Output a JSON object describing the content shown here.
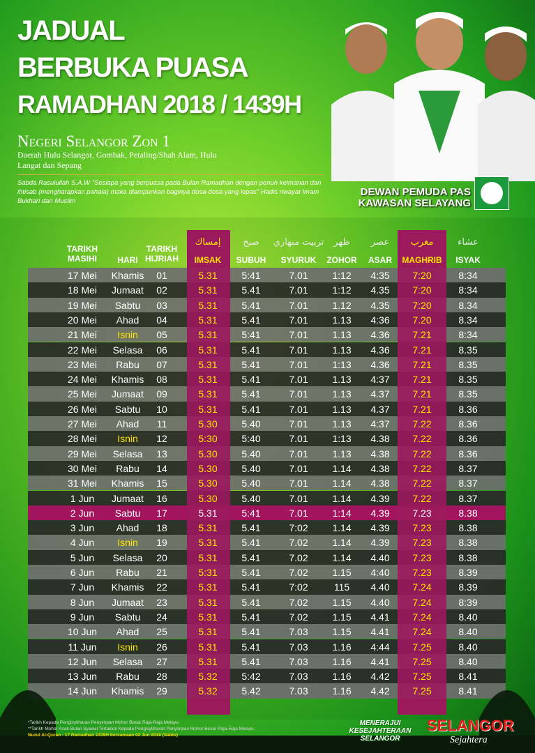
{
  "header": {
    "title_lines": [
      "JADUAL",
      "BERBUKA PUASA",
      "RAMADHAN 2018 / 1439H"
    ],
    "zone": "Negeri Selangor Zon 1",
    "districts": "Daerah Hulu Selangor, Gombak, Petaling/Shah Alam, Hulu Langat dan Sepang",
    "hadith": "Sabda Rasulullah S.A.W \"Sesiapa yang berpuasa pada Bulan Ramadhan dengan penuh keimanan dan ihtisab (mengharapkan pahala) maka diampunkan baginya dosa-dosa yang lepas\" Hadis riwayat Imam Bukhari dan Muslim",
    "organiser": [
      "DEWAN PEMUDA PAS",
      "KAWASAN SELAYANG"
    ]
  },
  "table": {
    "arabic": [
      "",
      "",
      "",
      "إمساك",
      "صبح",
      "تربيت منهاري",
      "ظهر",
      "عصر",
      "مغرب",
      "عشاء"
    ],
    "columns": [
      "TARIKH MASIHI",
      "HARI",
      "TARIKH HIJRIAH",
      "IMSAK",
      "SUBUH",
      "SYURUK",
      "ZOHOR",
      "ASAR",
      "MAGHRIB",
      "ISYAK"
    ],
    "rows": [
      [
        "17 Mei",
        "Khamis",
        "01",
        "5.31",
        "5:41",
        "7.01",
        "1:12",
        "4:35",
        "7:20",
        "8:34"
      ],
      [
        "18 Mei",
        "Jumaat",
        "02",
        "5.31",
        "5.41",
        "7.01",
        "1:12",
        "4.35",
        "7:20",
        "8:34"
      ],
      [
        "19 Mei",
        "Sabtu",
        "03",
        "5.31",
        "5.41",
        "7.01",
        "1.12",
        "4.35",
        "7:20",
        "8.34"
      ],
      [
        "20 Mei",
        "Ahad",
        "04",
        "5.31",
        "5.41",
        "7.01",
        "1.13",
        "4:36",
        "7.20",
        "8.34"
      ],
      [
        "21 Mei",
        "Isnin",
        "05",
        "5.31",
        "5:41",
        "7.01",
        "1.13",
        "4.36",
        "7.21",
        "8:34"
      ],
      [
        "22 Mei",
        "Selasa",
        "06",
        "5.31",
        "5.41",
        "7.01",
        "1.13",
        "4.36",
        "7.21",
        "8.35"
      ],
      [
        "23 Mei",
        "Rabu",
        "07",
        "5.31",
        "5.41",
        "7.01",
        "1:13",
        "4.36",
        "7.21",
        "8.35"
      ],
      [
        "24 Mei",
        "Khamis",
        "08",
        "5.31",
        "5.41",
        "7.01",
        "1.13",
        "4:37",
        "7.21",
        "8.35"
      ],
      [
        "25 Mei",
        "Jumaat",
        "09",
        "5.31",
        "5.41",
        "7.01",
        "1.13",
        "4.37",
        "7.21",
        "8.35"
      ],
      [
        "26 Mei",
        "Sabtu",
        "10",
        "5.31",
        "5.41",
        "7.01",
        "1.13",
        "4.37",
        "7.21",
        "8.36"
      ],
      [
        "27 Mei",
        "Ahad",
        "11",
        "5.30",
        "5.40",
        "7.01",
        "1.13",
        "4:37",
        "7.22",
        "8.36"
      ],
      [
        "28 Mei",
        "Isnin",
        "12",
        "5:30",
        "5:40",
        "7.01",
        "1:13",
        "4.38",
        "7.22",
        "8.36"
      ],
      [
        "29 Mei",
        "Selasa",
        "13",
        "5.30",
        "5.40",
        "7.01",
        "1.13",
        "4.38",
        "7.22",
        "8.36"
      ],
      [
        "30 Mei",
        "Rabu",
        "14",
        "5.30",
        "5.40",
        "7.01",
        "1.14",
        "4.38",
        "7.22",
        "8.37"
      ],
      [
        "31 Mei",
        "Khamis",
        "15",
        "5.30",
        "5.40",
        "7.01",
        "1.14",
        "4.38",
        "7.22",
        "8.37"
      ],
      [
        "1 Jun",
        "Jumaat",
        "16",
        "5.30",
        "5.40",
        "7.01",
        "1.14",
        "4.39",
        "7.22",
        "8.37"
      ],
      [
        "2 Jun",
        "Sabtu",
        "17",
        "5.31",
        "5:41",
        "7.01",
        "1:14",
        "4.39",
        "7.23",
        "8.38"
      ],
      [
        "3 Jun",
        "Ahad",
        "18",
        "5.31",
        "5.41",
        "7:02",
        "1.14",
        "4.39",
        "7.23",
        "8.38"
      ],
      [
        "4 Jun",
        "Isnin",
        "19",
        "5.31",
        "5.41",
        "7.02",
        "1.14",
        "4.39",
        "7.23",
        "8.38"
      ],
      [
        "5 Jun",
        "Selasa",
        "20",
        "5.31",
        "5.41",
        "7.02",
        "1.14",
        "4.40",
        "7.23",
        "8.38"
      ],
      [
        "6 Jun",
        "Rabu",
        "21",
        "5:31",
        "5.41",
        "7.02",
        "1.15",
        "4:40",
        "7.23",
        "8.39"
      ],
      [
        "7 Jun",
        "Khamis",
        "22",
        "5.31",
        "5.41",
        "7:02",
        "115",
        "4.40",
        "7.24",
        "8.39"
      ],
      [
        "8 Jun",
        "Jumaat",
        "23",
        "5.31",
        "5.41",
        "7.02",
        "1.15",
        "4.40",
        "7.24",
        "8:39"
      ],
      [
        "9 Jun",
        "Sabtu",
        "24",
        "5.31",
        "5.41",
        "7.02",
        "1.15",
        "4.41",
        "7.24",
        "8.40"
      ],
      [
        "10 Jun",
        "Ahad",
        "25",
        "5.31",
        "5.41",
        "7.03",
        "1.15",
        "4.41",
        "7.24",
        "8.40"
      ],
      [
        "11 Jun",
        "Isnin",
        "26",
        "5.31",
        "5.41",
        "7.03",
        "1.16",
        "4:44",
        "7.25",
        "8.40"
      ],
      [
        "12 Jun",
        "Selasa",
        "27",
        "5.31",
        "5.41",
        "7.03",
        "1.16",
        "4.41",
        "7.25",
        "8.40"
      ],
      [
        "13 Jun",
        "Rabu",
        "28",
        "5.32",
        "5:42",
        "7.03",
        "1.16",
        "4.42",
        "7.25",
        "8.41"
      ],
      [
        "14 Jun",
        "Khamis",
        "29",
        "5.32",
        "5.42",
        "7.03",
        "1.16",
        "4.42",
        "7.25",
        "8.41"
      ]
    ]
  },
  "footer": {
    "notes": [
      "*Tarikh Kepada Pengisytiharan Penyimpan Mohor Besar Raja-Raja Melayu.",
      "**Tarikh Mohor Anak Bulan Syawal Tertakluk Kepada Pengisytiharan Penyimpan Mohor Besar Raja-Raja Melayu."
    ],
    "nuzul": "Nuzul Al-Quran - 17 Ramadhan 1439H bersamaan 02 Jun 2018 (Sabtu)",
    "slogan": [
      "MENERAJUI",
      "KESEJAHTERAAN",
      "SELANGOR"
    ],
    "brand": "SELANGOR",
    "brand_script": "Sejahtera"
  }
}
